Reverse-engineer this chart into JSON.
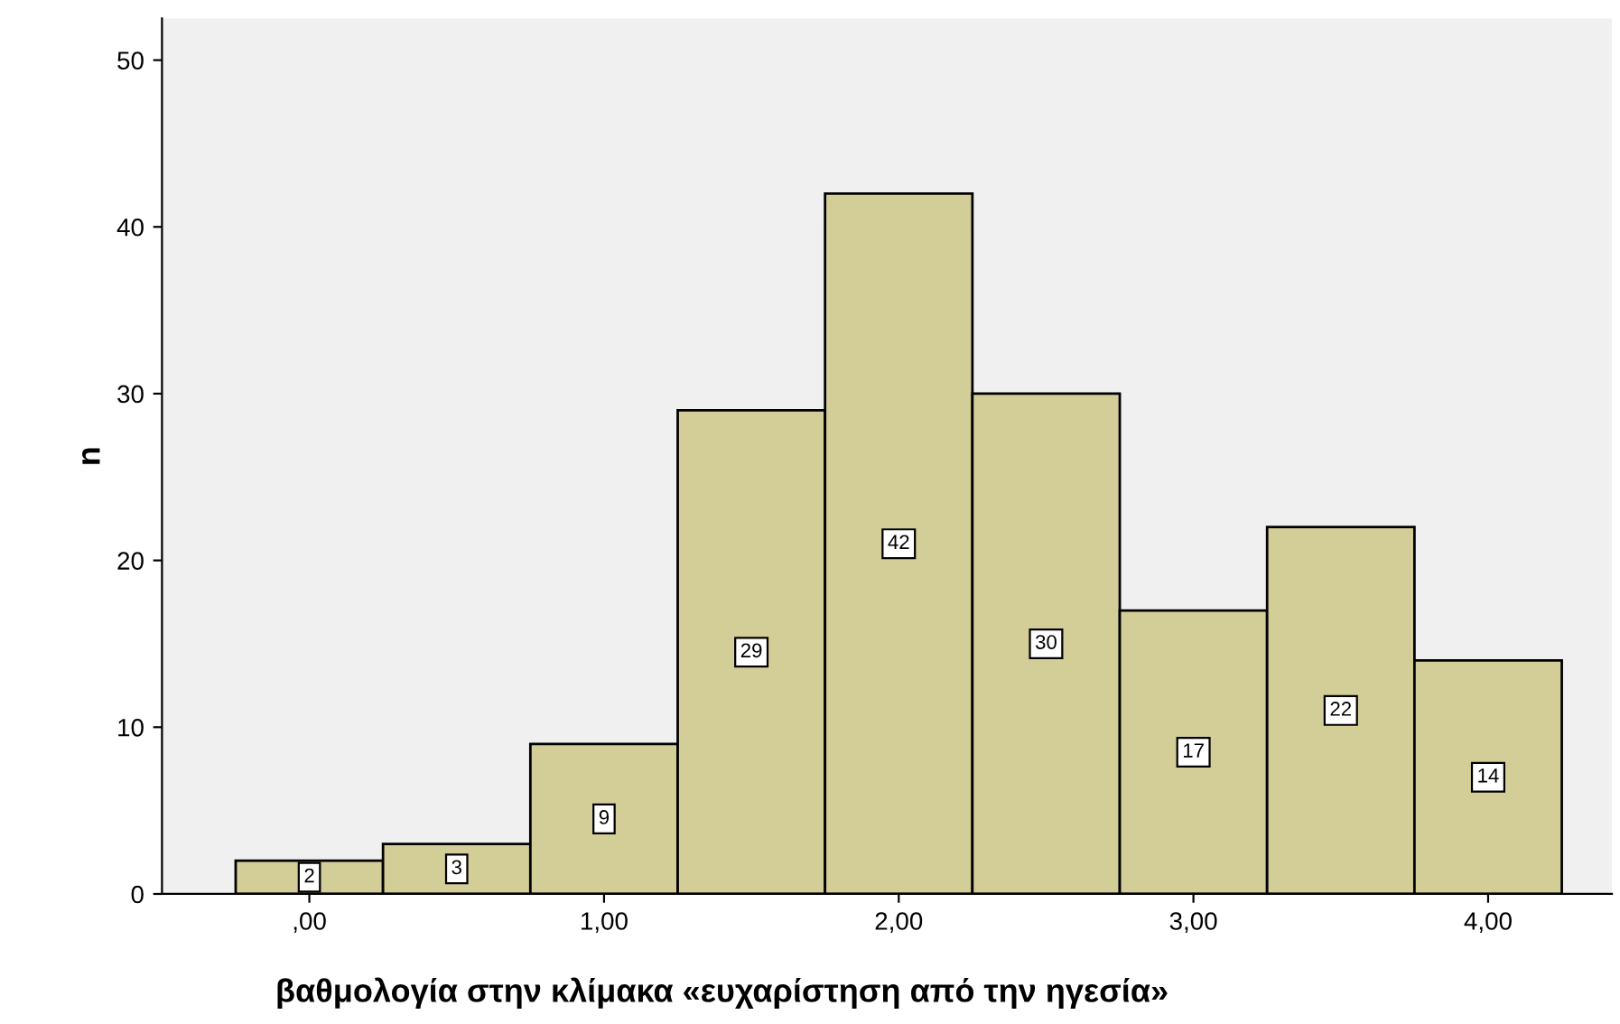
{
  "chart_data": {
    "type": "histogram",
    "xlabel": "βαθμολογία στην κλίμακα «ευχαρίστηση από την ηγεσία»",
    "ylabel": "n",
    "bins": [
      -0.25,
      0.25,
      0.75,
      1.25,
      1.75,
      2.25,
      2.75,
      3.25,
      3.75,
      4.25
    ],
    "values": [
      2,
      3,
      9,
      29,
      42,
      30,
      17,
      22,
      14
    ],
    "color": "#d3ce98",
    "data_labels": true,
    "grid": false,
    "xlim": [
      -0.5,
      4.42
    ],
    "ylim": [
      0,
      52.5
    ],
    "xticks": [
      {
        "value": 0,
        "label": ",00"
      },
      {
        "value": 1,
        "label": "1,00"
      },
      {
        "value": 2,
        "label": "2,00"
      },
      {
        "value": 3,
        "label": "3,00"
      },
      {
        "value": 4,
        "label": "4,00"
      }
    ],
    "yticks": [
      0,
      10,
      20,
      30,
      40,
      50
    ]
  }
}
